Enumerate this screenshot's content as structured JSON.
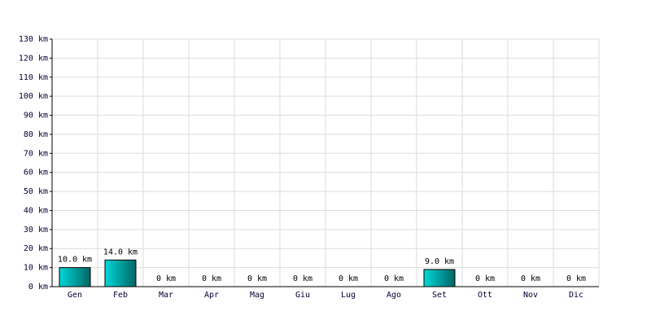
{
  "chart_data": {
    "type": "bar",
    "categories": [
      "Gen",
      "Feb",
      "Mar",
      "Apr",
      "Mag",
      "Giu",
      "Lug",
      "Ago",
      "Set",
      "Ott",
      "Nov",
      "Dic"
    ],
    "values": [
      10,
      14,
      0,
      0,
      0,
      0,
      0,
      0,
      9,
      0,
      0,
      0
    ],
    "value_labels": [
      "10.0 km",
      "14.0 km",
      "0 km",
      "0 km",
      "0 km",
      "0 km",
      "0 km",
      "0 km",
      "9.0 km",
      "0 km",
      "0 km",
      "0 km"
    ],
    "color": "#00d8d8",
    "ylim": [
      0,
      130
    ],
    "yticks": [
      {
        "value": 0,
        "label": "0 km"
      },
      {
        "value": 10,
        "label": "10 km"
      },
      {
        "value": 20,
        "label": "20 km"
      },
      {
        "value": 30,
        "label": "30 km"
      },
      {
        "value": 40,
        "label": "40 km"
      },
      {
        "value": 50,
        "label": "50 km"
      },
      {
        "value": 60,
        "label": "60 km"
      },
      {
        "value": 70,
        "label": "70 km"
      },
      {
        "value": 80,
        "label": "80 km"
      },
      {
        "value": 90,
        "label": "90 km"
      },
      {
        "value": 100,
        "label": "100 km"
      },
      {
        "value": 110,
        "label": "110 km"
      },
      {
        "value": 120,
        "label": "120 km"
      },
      {
        "value": 130,
        "label": "130 km"
      }
    ],
    "grid": true
  }
}
